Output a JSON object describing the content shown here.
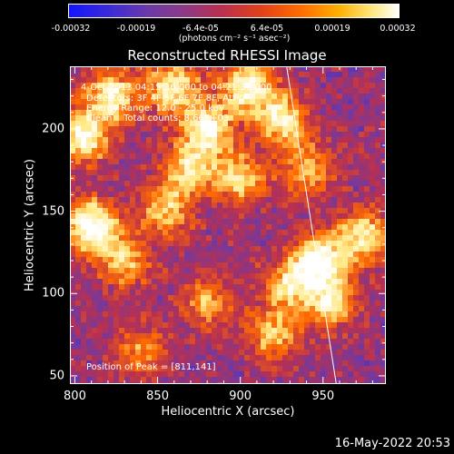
{
  "colorbar": {
    "tick_labels": [
      "-0.00032",
      "-0.00019",
      "-6.4e-05",
      "6.4e-05",
      "0.00019",
      "0.00032"
    ],
    "units_label": "(photons cm⁻² s⁻¹ asec⁻²)",
    "colors": [
      "#1414ff",
      "#6b3aa8",
      "#b83050",
      "#ff6a00",
      "#ffe880",
      "#ffffff"
    ]
  },
  "chart_data": {
    "type": "heatmap",
    "title": "Reconstructed RHESSI Image",
    "xlabel": "Heliocentric X (arcsec)",
    "ylabel": "Heliocentric Y (arcsec)",
    "xlim": [
      797,
      988
    ],
    "ylim": [
      45,
      238
    ],
    "xticks": [
      800,
      850,
      900,
      950
    ],
    "yticks": [
      50,
      100,
      150,
      200
    ],
    "value_range": [
      -0.00032,
      0.00032
    ],
    "annotations": [
      "4-Oct-2013 04:15:36.000 to 04:21:36.000",
      "Detectors: 3F 4F 5F 6F 7F 8F, Att 0",
      "Energy Range: 12.0 - 25.0 keV",
      "Clean    Total counts: 8.66E+03"
    ],
    "peak_label": "Position of Peak = [811,141]",
    "peak": [
      811,
      141
    ],
    "limb_line": [
      [
        928,
        238
      ],
      [
        958,
        45
      ]
    ],
    "bright_regions": [
      {
        "x": 810,
        "y": 141,
        "level": 1.0
      },
      {
        "x": 805,
        "y": 195,
        "level": 0.85
      },
      {
        "x": 822,
        "y": 220,
        "level": 0.8
      },
      {
        "x": 860,
        "y": 225,
        "level": 0.75
      },
      {
        "x": 880,
        "y": 200,
        "level": 0.85
      },
      {
        "x": 905,
        "y": 225,
        "level": 0.85
      },
      {
        "x": 925,
        "y": 205,
        "level": 0.75
      },
      {
        "x": 870,
        "y": 175,
        "level": 0.7
      },
      {
        "x": 900,
        "y": 170,
        "level": 0.65
      },
      {
        "x": 855,
        "y": 150,
        "level": 0.6
      },
      {
        "x": 830,
        "y": 120,
        "level": 0.6
      },
      {
        "x": 948,
        "y": 120,
        "level": 0.95
      },
      {
        "x": 975,
        "y": 135,
        "level": 0.75
      },
      {
        "x": 930,
        "y": 105,
        "level": 0.65
      },
      {
        "x": 955,
        "y": 95,
        "level": 0.7
      },
      {
        "x": 920,
        "y": 75,
        "level": 0.6
      },
      {
        "x": 880,
        "y": 95,
        "level": 0.5
      },
      {
        "x": 840,
        "y": 65,
        "level": 0.45
      },
      {
        "x": 940,
        "y": 175,
        "level": 0.55
      }
    ]
  },
  "footer": "16-May-2022 20:53"
}
